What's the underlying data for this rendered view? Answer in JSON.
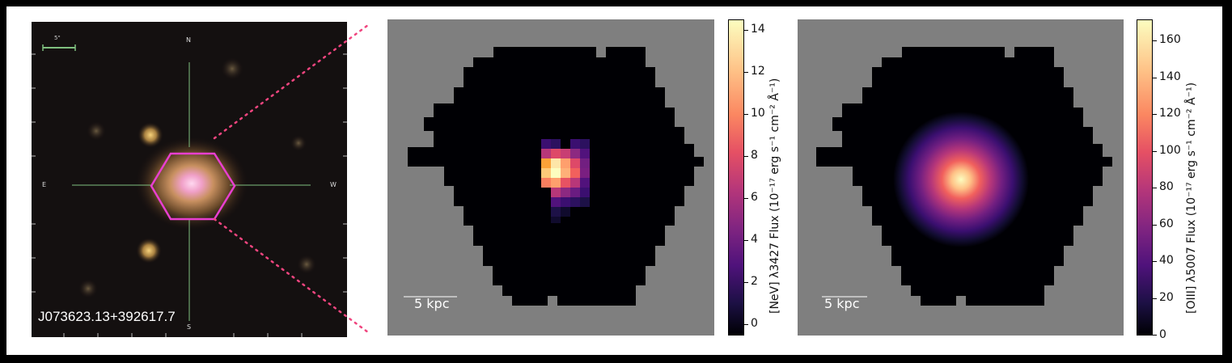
{
  "panels": {
    "optical": {
      "object_name": "J073623.13+392617.7",
      "scale_label": "5\"",
      "compass": {
        "north": "N",
        "south": "S",
        "east": "E",
        "west": "W"
      }
    },
    "neV": {
      "scalebar_label": "5 kpc",
      "colorbar_label": "[NeV] λ3427 Flux (10⁻¹⁷ erg s⁻¹ cm⁻² Å⁻¹)",
      "colorbar_ticks": [
        "0",
        "2",
        "4",
        "6",
        "8",
        "10",
        "12",
        "14"
      ],
      "colorbar_range": [
        0,
        15
      ]
    },
    "oiii": {
      "scalebar_label": "5 kpc",
      "colorbar_label": "[OIII] λ5007 Flux (10⁻¹⁷ erg s⁻¹ cm⁻² Å⁻¹)",
      "colorbar_ticks": [
        "0",
        "20",
        "40",
        "60",
        "80",
        "100",
        "120",
        "140",
        "160"
      ],
      "colorbar_range": [
        0,
        172
      ]
    }
  },
  "colors": {
    "hexagon": "#e83fd0",
    "zoom_dots": "#f0457f",
    "crosshair": "#7fbf7f",
    "map_background": "#7f7f7f",
    "map_field": "#000004"
  }
}
